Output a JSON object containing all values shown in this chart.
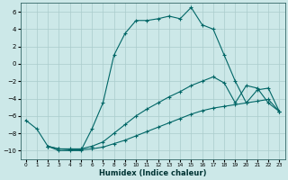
{
  "xlabel": "Humidex (Indice chaleur)",
  "xlim": [
    -0.5,
    23.5
  ],
  "ylim": [
    -11,
    7
  ],
  "yticks": [
    -10,
    -8,
    -6,
    -4,
    -2,
    0,
    2,
    4,
    6
  ],
  "xticks": [
    0,
    1,
    2,
    3,
    4,
    5,
    6,
    7,
    8,
    9,
    10,
    11,
    12,
    13,
    14,
    15,
    16,
    17,
    18,
    19,
    20,
    21,
    22,
    23
  ],
  "bg_color": "#cce8e8",
  "grid_color": "#aacccc",
  "line_color": "#006666",
  "line1_x": [
    0,
    1,
    2,
    3,
    4,
    5,
    6,
    7,
    8,
    9,
    10,
    11,
    12,
    13,
    14,
    15,
    16,
    17,
    18,
    19,
    20,
    21,
    22,
    23
  ],
  "line1_y": [
    -6.5,
    -7.5,
    -9.5,
    -10.0,
    -10.0,
    -10.0,
    -7.5,
    -4.5,
    1.0,
    3.5,
    5.0,
    5.0,
    5.2,
    5.5,
    5.2,
    6.5,
    4.5,
    4.0,
    1.0,
    -2.0,
    -4.5,
    -3.0,
    -2.8,
    -5.5
  ],
  "line2_x": [
    2,
    3,
    4,
    5,
    6,
    7,
    8,
    9,
    10,
    11,
    12,
    13,
    14,
    15,
    16,
    17,
    18,
    19,
    20,
    21,
    22,
    23
  ],
  "line2_y": [
    -9.5,
    -9.8,
    -9.8,
    -9.8,
    -9.5,
    -9.0,
    -8.0,
    -7.0,
    -6.0,
    -5.2,
    -4.5,
    -3.8,
    -3.2,
    -2.5,
    -2.0,
    -1.5,
    -2.2,
    -4.5,
    -2.5,
    -2.8,
    -4.5,
    -5.5
  ],
  "line3_x": [
    2,
    3,
    4,
    5,
    6,
    7,
    8,
    9,
    10,
    11,
    12,
    13,
    14,
    15,
    16,
    17,
    18,
    19,
    20,
    21,
    22,
    23
  ],
  "line3_y": [
    -9.5,
    -9.8,
    -9.9,
    -9.9,
    -9.8,
    -9.6,
    -9.2,
    -8.8,
    -8.3,
    -7.8,
    -7.3,
    -6.8,
    -6.3,
    -5.8,
    -5.4,
    -5.1,
    -4.9,
    -4.7,
    -4.5,
    -4.3,
    -4.1,
    -5.5
  ]
}
